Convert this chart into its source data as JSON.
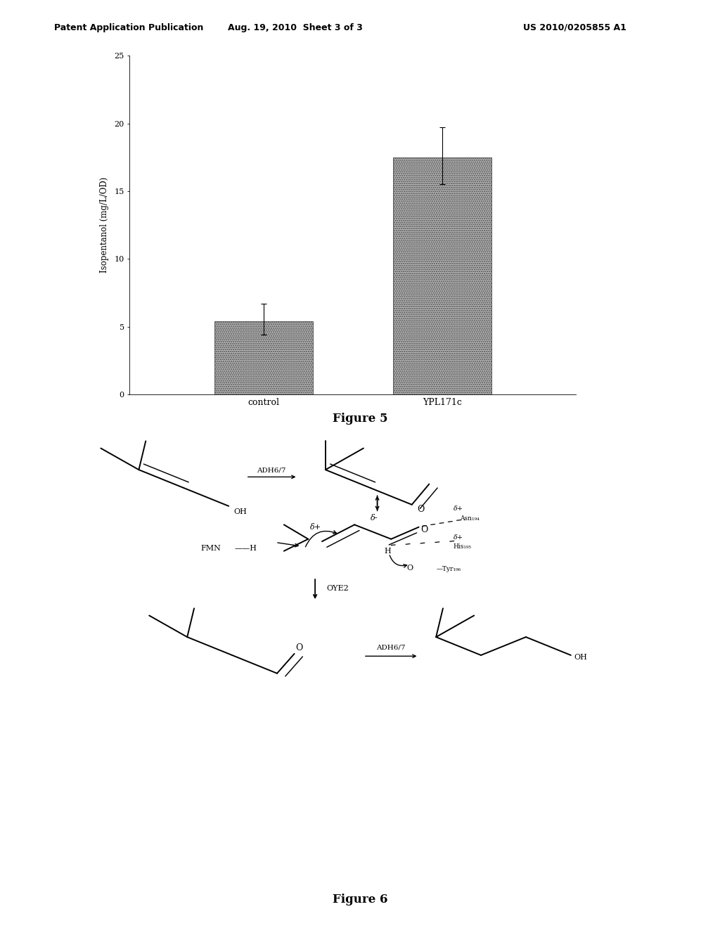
{
  "header_left": "Patent Application Publication",
  "header_center": "Aug. 19, 2010  Sheet 3 of 3",
  "header_right": "US 2010/0205855 A1",
  "bar_categories": [
    "control",
    "YPL171c"
  ],
  "bar_values": [
    5.4,
    17.5
  ],
  "bar_error_plus": [
    1.3,
    2.2
  ],
  "bar_error_minus": [
    1.0,
    2.0
  ],
  "bar_color": "#b8b8b8",
  "ylabel": "Isopentanol (mg/L/OD)",
  "ylim": [
    0,
    25
  ],
  "yticks": [
    0,
    5,
    10,
    15,
    20,
    25
  ],
  "figure5_caption": "Figure 5",
  "figure6_caption": "Figure 6",
  "bg_color": "#ffffff"
}
